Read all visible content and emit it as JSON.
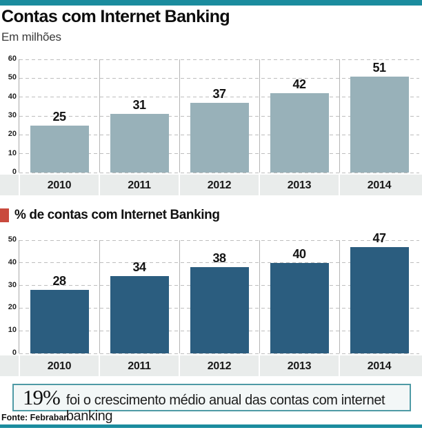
{
  "page": {
    "callout": {
      "stat": "19%",
      "text": "foi o crescimento médio anual das contas com internet banking"
    },
    "source": "Fonte: Febraban"
  },
  "colors": {
    "accent_teal": "#1b8c9e",
    "chart1_bar": "#98b1b9",
    "chart2_bar": "#2b5d7f",
    "legend_red": "#c94a3e",
    "band_gray": "#e9eceb",
    "gridline_gray": "#bdbdbd",
    "axis_gray": "#a8a8a8",
    "callout_border": "#4e9aa5",
    "callout_bg": "#f3f7f7"
  },
  "chart_data": [
    {
      "type": "bar",
      "title": "Contas com Internet Banking",
      "subtitle": "Em milhões",
      "categories": [
        "2010",
        "2011",
        "2012",
        "2013",
        "2014"
      ],
      "values": [
        25,
        31,
        37,
        42,
        51
      ],
      "ylim": [
        0,
        60
      ],
      "ytick_step": 10,
      "bar_color": "#98b1b9",
      "grid": "horizontal-dashed",
      "legend_position": "none",
      "value_labels": true
    },
    {
      "type": "bar",
      "title": "% de contas com Internet Banking",
      "categories": [
        "2010",
        "2011",
        "2012",
        "2013",
        "2014"
      ],
      "values": [
        28,
        34,
        38,
        40,
        47
      ],
      "ylim": [
        0,
        50
      ],
      "ytick_step": 10,
      "bar_color": "#2b5d7f",
      "grid": "horizontal-dashed",
      "legend_marker_color": "#c94a3e",
      "legend_position": "top-left",
      "value_labels": true
    }
  ]
}
